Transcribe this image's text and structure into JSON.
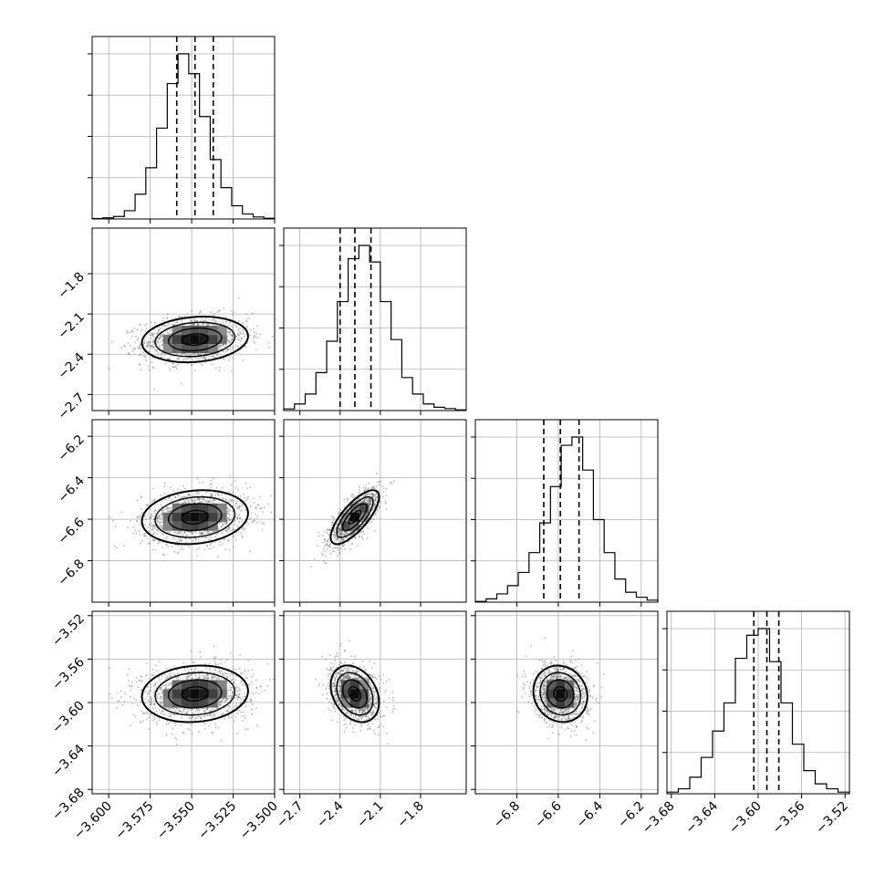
{
  "chart_data": {
    "type": "corner",
    "grid": true,
    "variables": [
      {
        "range": [
          -3.61,
          -3.5
        ],
        "ticks": [
          -3.6,
          -3.575,
          -3.55,
          -3.525,
          -3.5
        ],
        "tick_labels": [
          "−3.600",
          "−3.575",
          "−3.550",
          "−3.525",
          "−3.500"
        ],
        "quantiles": [
          -3.559,
          -3.548,
          -3.537
        ],
        "hist": [
          0.003,
          0.007,
          0.015,
          0.05,
          0.15,
          0.31,
          0.55,
          0.82,
          1.0,
          0.88,
          0.62,
          0.36,
          0.19,
          0.08,
          0.03,
          0.012,
          0.004
        ]
      },
      {
        "range": [
          -2.82,
          -1.46
        ],
        "ticks": [
          -2.7,
          -2.4,
          -2.1,
          -1.8
        ],
        "tick_labels": [
          "−2.7",
          "−2.4",
          "−2.1",
          "−1.8"
        ],
        "quantiles": [
          -2.4,
          -2.29,
          -2.17
        ],
        "hist": [
          0.01,
          0.04,
          0.1,
          0.23,
          0.42,
          0.66,
          0.92,
          1.0,
          0.9,
          0.66,
          0.43,
          0.2,
          0.1,
          0.04,
          0.02,
          0.012,
          0.004
        ]
      },
      {
        "range": [
          -7.0,
          -6.12
        ],
        "ticks": [
          -6.8,
          -6.6,
          -6.4,
          -6.2
        ],
        "tick_labels": [
          "−6.8",
          "−6.6",
          "−6.4",
          "−6.2"
        ],
        "quantiles": [
          -6.67,
          -6.59,
          -6.5
        ],
        "hist": [
          0.004,
          0.02,
          0.05,
          0.1,
          0.18,
          0.3,
          0.48,
          0.7,
          0.95,
          1.0,
          0.8,
          0.5,
          0.3,
          0.14,
          0.06,
          0.03,
          0.012
        ]
      },
      {
        "range": [
          -3.684,
          -3.516
        ],
        "ticks": [
          -3.68,
          -3.64,
          -3.6,
          -3.56,
          -3.52
        ],
        "tick_labels": [
          "−3.68",
          "−3.64",
          "−3.60",
          "−3.56",
          "−3.52"
        ],
        "quantiles": [
          -3.604,
          -3.592,
          -3.581
        ],
        "hist": [
          0.01,
          0.03,
          0.1,
          0.22,
          0.38,
          0.55,
          0.82,
          0.96,
          1.0,
          0.8,
          0.55,
          0.3,
          0.14,
          0.06,
          0.03,
          0.01
        ]
      }
    ],
    "contour_panels": [
      {
        "row": 1,
        "col": 0,
        "mean": [
          -3.548,
          -2.29
        ],
        "sd": [
          0.016,
          0.085
        ],
        "corr": 0.15
      },
      {
        "row": 2,
        "col": 0,
        "mean": [
          -3.548,
          -6.59
        ],
        "sd": [
          0.016,
          0.065
        ],
        "corr": 0.15
      },
      {
        "row": 2,
        "col": 1,
        "mean": [
          -2.29,
          -6.59
        ],
        "sd": [
          0.09,
          0.065
        ],
        "corr": 0.75
      },
      {
        "row": 3,
        "col": 0,
        "mean": [
          -3.548,
          -3.592
        ],
        "sd": [
          0.016,
          0.013
        ],
        "corr": 0.1
      },
      {
        "row": 3,
        "col": 1,
        "mean": [
          -2.29,
          -3.592
        ],
        "sd": [
          0.09,
          0.013
        ],
        "corr": -0.3
      },
      {
        "row": 3,
        "col": 2,
        "mean": [
          -6.59,
          -3.592
        ],
        "sd": [
          0.065,
          0.013
        ],
        "corr": -0.1
      }
    ],
    "contour_levels_sigma": [
      0.5,
      1.0,
      1.5,
      2.0
    ]
  }
}
